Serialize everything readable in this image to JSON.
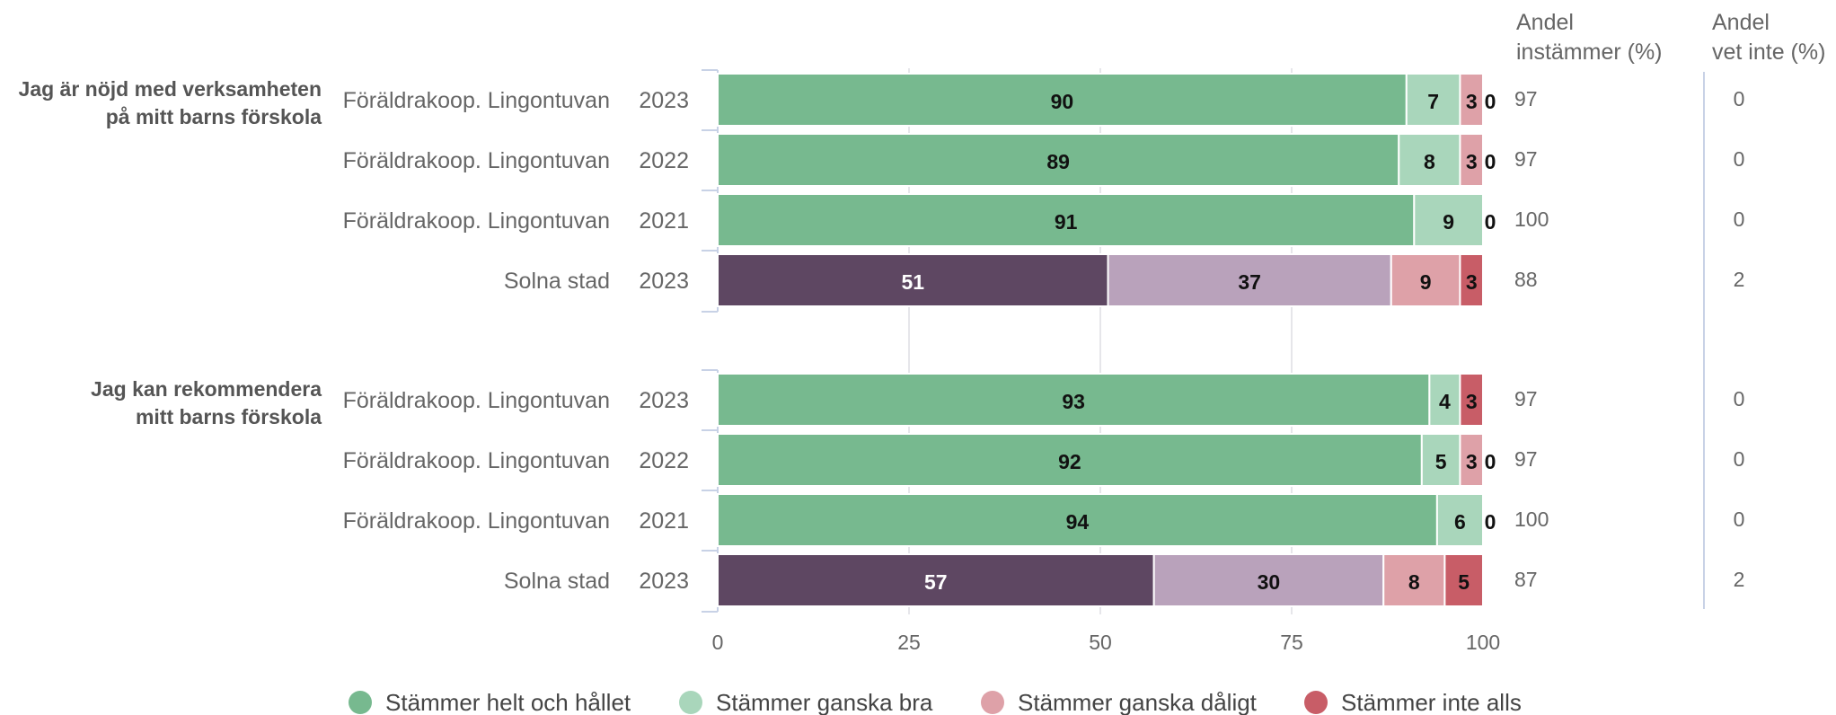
{
  "chart_data": {
    "type": "bar",
    "orientation": "horizontal",
    "stacked": true,
    "xlim": [
      0,
      100
    ],
    "x_ticks": [
      "0",
      "25",
      "50",
      "75",
      "100"
    ],
    "grid": true,
    "legend_position": "bottom",
    "headers": {
      "andel_instammer": [
        "Andel",
        "instämmer (%)"
      ],
      "andel_vet_inte": [
        "Andel",
        "vet inte (%)"
      ]
    },
    "segment_names": [
      "Stämmer helt och hållet",
      "Stämmer ganska bra",
      "Stämmer ganska dåligt",
      "Stämmer inte alls"
    ],
    "colors": {
      "highlight": [
        "#77b98f",
        "#a9d6bb",
        "#dea1a8",
        "#c85d67"
      ],
      "comparison": [
        "#5e4762",
        "#b9a2bb",
        "#dea1a8",
        "#c85d67"
      ],
      "legend": [
        "#77b98f",
        "#a9d6bb",
        "#dea1a8",
        "#c85d67"
      ]
    },
    "groups": [
      {
        "question": [
          "Jag är nöjd med verksamheten",
          "på mitt barns förskola"
        ],
        "rows": [
          {
            "unit": "Föräldrakoop. Lingontuvan",
            "year": "2023",
            "values": [
              90,
              7,
              3,
              0
            ],
            "labels": [
              "90",
              "7",
              "3",
              "0"
            ],
            "style": "highlight",
            "andel_instammer": "97",
            "andel_vet_inte": "0"
          },
          {
            "unit": "Föräldrakoop. Lingontuvan",
            "year": "2022",
            "values": [
              89,
              8,
              3,
              0
            ],
            "labels": [
              "89",
              "8",
              "3",
              "0"
            ],
            "style": "highlight",
            "andel_instammer": "97",
            "andel_vet_inte": "0"
          },
          {
            "unit": "Föräldrakoop. Lingontuvan",
            "year": "2021",
            "values": [
              91,
              9,
              0,
              0
            ],
            "labels": [
              "91",
              "9",
              "0",
              ""
            ],
            "style": "highlight",
            "andel_instammer": "100",
            "andel_vet_inte": "0"
          },
          {
            "unit": "Solna stad",
            "year": "2023",
            "values": [
              51,
              37,
              9,
              3
            ],
            "labels": [
              "51",
              "37",
              "9",
              "3"
            ],
            "style": "comparison",
            "andel_instammer": "88",
            "andel_vet_inte": "2"
          }
        ]
      },
      {
        "question": [
          "Jag kan rekommendera",
          "mitt barns förskola"
        ],
        "rows": [
          {
            "unit": "Föräldrakoop. Lingontuvan",
            "year": "2023",
            "values": [
              93,
              4,
              0,
              3
            ],
            "labels": [
              "93",
              "4",
              "0",
              "3"
            ],
            "style": "highlight",
            "andel_instammer": "97",
            "andel_vet_inte": "0"
          },
          {
            "unit": "Föräldrakoop. Lingontuvan",
            "year": "2022",
            "values": [
              92,
              5,
              3,
              0
            ],
            "labels": [
              "92",
              "5",
              "3",
              "0"
            ],
            "style": "highlight",
            "andel_instammer": "97",
            "andel_vet_inte": "0"
          },
          {
            "unit": "Föräldrakoop. Lingontuvan",
            "year": "2021",
            "values": [
              94,
              6,
              0,
              0
            ],
            "labels": [
              "94",
              "6",
              "0",
              ""
            ],
            "style": "highlight",
            "andel_instammer": "100",
            "andel_vet_inte": "0"
          },
          {
            "unit": "Solna stad",
            "year": "2023",
            "values": [
              57,
              30,
              8,
              5
            ],
            "labels": [
              "57",
              "30",
              "8",
              "5"
            ],
            "style": "comparison",
            "andel_instammer": "87",
            "andel_vet_inte": "2"
          }
        ]
      }
    ]
  }
}
